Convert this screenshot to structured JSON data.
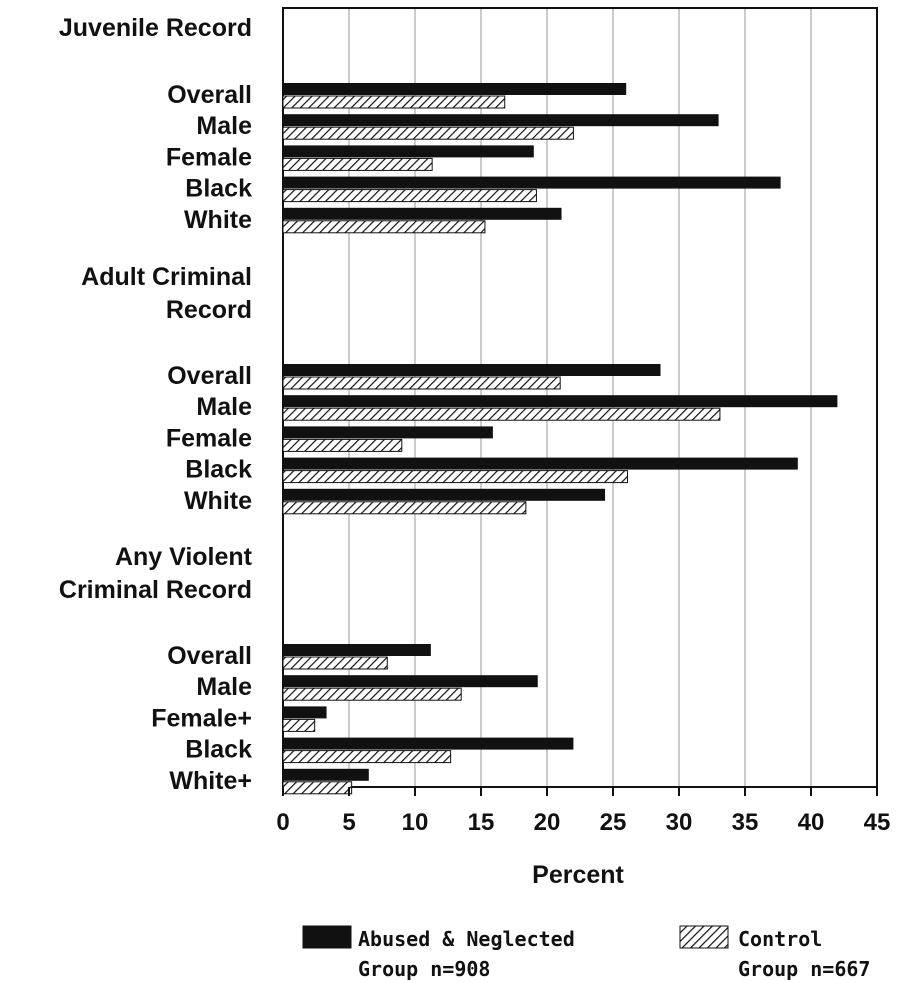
{
  "chart_data": {
    "type": "bar",
    "orientation": "horizontal",
    "xlabel": "Percent",
    "xlim": [
      0,
      45
    ],
    "xticks": [
      0,
      5,
      10,
      15,
      20,
      25,
      30,
      35,
      40,
      45
    ],
    "grid": "vertical",
    "legend_position": "bottom",
    "legend": [
      {
        "name": "Abused & Neglected",
        "sub": "Group  n=908",
        "pattern": "solid",
        "color": "#111111"
      },
      {
        "name": "Control",
        "sub": "Group  n=667",
        "pattern": "hatched",
        "color": "#111111"
      }
    ],
    "sections": [
      {
        "title": [
          "Juvenile Record"
        ],
        "categories": [
          "Overall",
          "Male",
          "Female",
          "Black",
          "White"
        ],
        "series": [
          {
            "name": "Abused & Neglected",
            "values": [
              26,
              33,
              19,
              37.7,
              21.1
            ]
          },
          {
            "name": "Control",
            "values": [
              16.8,
              22.0,
              11.3,
              19.2,
              15.3
            ]
          }
        ]
      },
      {
        "title": [
          "Adult Criminal",
          "Record"
        ],
        "categories": [
          "Overall",
          "Male",
          "Female",
          "Black",
          "White"
        ],
        "series": [
          {
            "name": "Abused & Neglected",
            "values": [
              28.6,
              42.0,
              15.9,
              39.0,
              24.4
            ]
          },
          {
            "name": "Control",
            "values": [
              21.0,
              33.1,
              9.0,
              26.1,
              18.4
            ]
          }
        ]
      },
      {
        "title": [
          "Any Violent",
          "Criminal Record"
        ],
        "categories": [
          "Overall",
          "Male",
          "Female+",
          "Black",
          "White+"
        ],
        "series": [
          {
            "name": "Abused & Neglected",
            "values": [
              11.2,
              19.3,
              3.3,
              22.0,
              6.5
            ]
          },
          {
            "name": "Control",
            "values": [
              7.9,
              13.5,
              2.4,
              12.7,
              5.2
            ]
          }
        ]
      }
    ]
  }
}
